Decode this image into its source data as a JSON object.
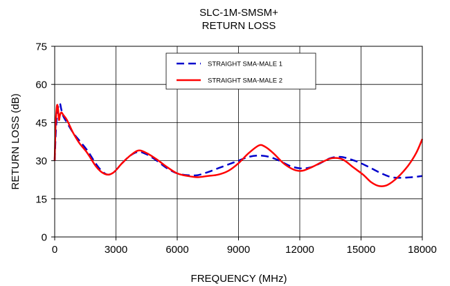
{
  "chart_data": {
    "type": "line",
    "title": [
      "SLC-1M-SMSM+",
      "RETURN LOSS"
    ],
    "xlabel": "FREQUENCY (MHz)",
    "ylabel": "RETURN LOSS (dB)",
    "xlim": [
      0,
      18000
    ],
    "ylim": [
      0,
      75
    ],
    "xticks": [
      0,
      3000,
      6000,
      9000,
      12000,
      15000,
      18000
    ],
    "yticks": [
      0,
      15,
      30,
      45,
      60,
      75
    ],
    "xtick_labels": [
      "0",
      "3000",
      "6000",
      "9000",
      "12000",
      "15000",
      "18000"
    ],
    "ytick_labels": [
      "0",
      "15",
      "30",
      "45",
      "60",
      "75"
    ],
    "grid": true,
    "legend_position": "top-right",
    "series": [
      {
        "name": "STRAIGHT SMA-MALE 1",
        "color": "#0000cc",
        "dash": "dashed",
        "points": [
          [
            0,
            30
          ],
          [
            60,
            42
          ],
          [
            130,
            49
          ],
          [
            200,
            52
          ],
          [
            260,
            52.5
          ],
          [
            330,
            50
          ],
          [
            420,
            47.5
          ],
          [
            600,
            45
          ],
          [
            900,
            41
          ],
          [
            1200,
            38
          ],
          [
            1600,
            34
          ],
          [
            2000,
            29
          ],
          [
            2300,
            26
          ],
          [
            2600,
            24.5
          ],
          [
            2900,
            25.5
          ],
          [
            3300,
            29
          ],
          [
            3700,
            32
          ],
          [
            4100,
            33.5
          ],
          [
            4500,
            32.5
          ],
          [
            5000,
            30
          ],
          [
            5500,
            27
          ],
          [
            6000,
            25
          ],
          [
            6500,
            24.3
          ],
          [
            7000,
            24.3
          ],
          [
            7500,
            25.5
          ],
          [
            8000,
            27
          ],
          [
            8500,
            28.5
          ],
          [
            9000,
            30
          ],
          [
            9500,
            31.5
          ],
          [
            10000,
            32
          ],
          [
            10500,
            31.5
          ],
          [
            11000,
            30
          ],
          [
            11500,
            28
          ],
          [
            12000,
            27
          ],
          [
            12500,
            27.3
          ],
          [
            13000,
            29
          ],
          [
            13500,
            31
          ],
          [
            14000,
            31.5
          ],
          [
            14500,
            30.5
          ],
          [
            15000,
            29
          ],
          [
            15500,
            27
          ],
          [
            16000,
            25
          ],
          [
            16500,
            23.5
          ],
          [
            17000,
            23.3
          ],
          [
            17500,
            23.5
          ],
          [
            18000,
            24
          ]
        ]
      },
      {
        "name": "STRAIGHT SMA-MALE 2",
        "color": "#ff0000",
        "dash": "solid",
        "points": [
          [
            0,
            30
          ],
          [
            40,
            43
          ],
          [
            90,
            50
          ],
          [
            130,
            52
          ],
          [
            170,
            50
          ],
          [
            210,
            46
          ],
          [
            260,
            48
          ],
          [
            330,
            49
          ],
          [
            420,
            48
          ],
          [
            600,
            46
          ],
          [
            900,
            41
          ],
          [
            1200,
            37
          ],
          [
            1600,
            33
          ],
          [
            2000,
            28
          ],
          [
            2300,
            25.5
          ],
          [
            2600,
            24.5
          ],
          [
            2900,
            25.5
          ],
          [
            3300,
            29
          ],
          [
            3700,
            32
          ],
          [
            4100,
            34
          ],
          [
            4500,
            33
          ],
          [
            5000,
            30.5
          ],
          [
            5500,
            27.5
          ],
          [
            6000,
            25
          ],
          [
            6500,
            24
          ],
          [
            7000,
            23.5
          ],
          [
            7500,
            24
          ],
          [
            8000,
            24.5
          ],
          [
            8500,
            26
          ],
          [
            9000,
            29
          ],
          [
            9500,
            33
          ],
          [
            10000,
            36
          ],
          [
            10300,
            35.5
          ],
          [
            10700,
            33
          ],
          [
            11200,
            29
          ],
          [
            11700,
            26.5
          ],
          [
            12100,
            26
          ],
          [
            12600,
            27.5
          ],
          [
            13100,
            29.5
          ],
          [
            13600,
            31
          ],
          [
            14100,
            30.5
          ],
          [
            14600,
            27.5
          ],
          [
            15100,
            24.5
          ],
          [
            15500,
            21.5
          ],
          [
            15900,
            20
          ],
          [
            16300,
            20.5
          ],
          [
            16800,
            23.5
          ],
          [
            17300,
            28
          ],
          [
            17700,
            33
          ],
          [
            18000,
            38.5
          ]
        ]
      }
    ]
  }
}
